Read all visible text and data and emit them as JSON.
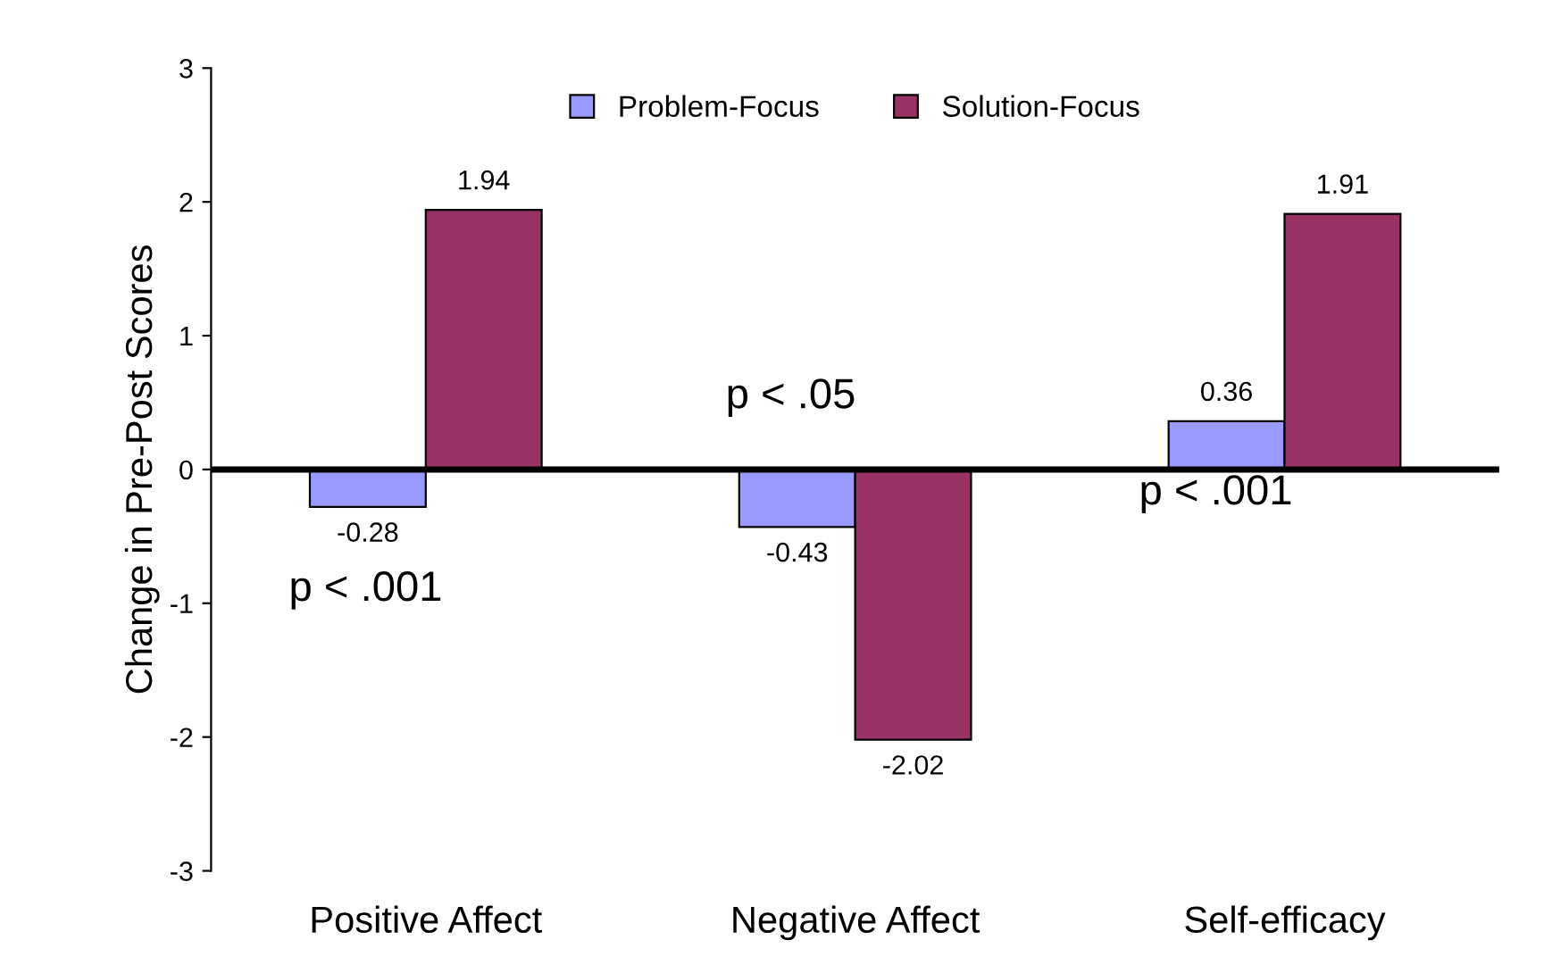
{
  "chart_data": {
    "type": "bar",
    "ylabel": "Change in Pre-Post Scores",
    "categories": [
      "Positive Affect",
      "Negative Affect",
      "Self-efficacy"
    ],
    "series": [
      {
        "name": "Problem-Focus",
        "color": "#9999ff",
        "values": [
          -0.28,
          -0.43,
          0.36
        ]
      },
      {
        "name": "Solution-Focus",
        "color": "#993366",
        "values": [
          1.94,
          -2.02,
          1.91
        ]
      }
    ],
    "ylim": [
      -3,
      3
    ],
    "yticks": [
      -3,
      -2,
      -1,
      0,
      1,
      2,
      3
    ],
    "ref_lines": [
      {
        "axis": "y",
        "value": 0,
        "color": "#000000"
      }
    ],
    "annotations": [
      "p < .001",
      "p < .05",
      "p < .001"
    ],
    "data_labels": true,
    "grid": false,
    "legend": "top"
  }
}
